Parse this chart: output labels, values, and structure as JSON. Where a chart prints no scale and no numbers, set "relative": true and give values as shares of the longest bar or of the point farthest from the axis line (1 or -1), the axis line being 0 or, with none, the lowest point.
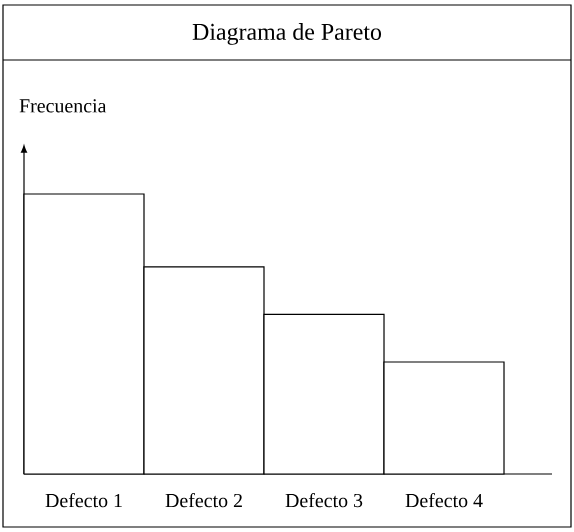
{
  "chart_data": {
    "type": "bar",
    "title": "Diagrama de Pareto",
    "ylabel": "Frecuencia",
    "relative": true,
    "categories": [
      "Defecto 1",
      "Defecto 2",
      "Defecto 3",
      "Defecto 4"
    ],
    "values": [
      1,
      0.74,
      0.57,
      0.4
    ],
    "color": "#ffffff"
  }
}
